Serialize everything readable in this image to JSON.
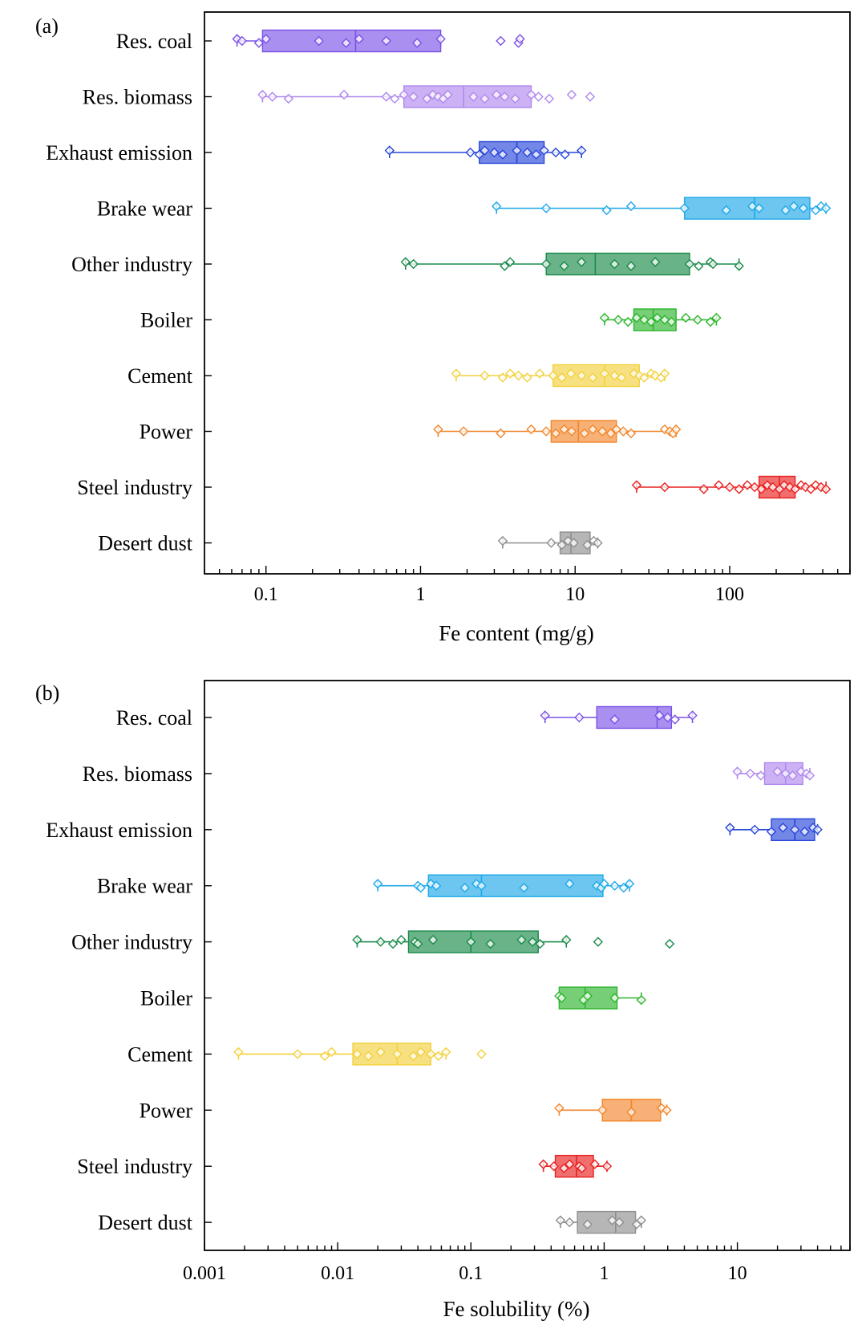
{
  "chart_data": [
    {
      "type": "box",
      "panel_label": "(a)",
      "xlabel": "Fe content (mg/g)",
      "xscale": "log",
      "xlim": [
        0.04,
        600
      ],
      "xticks": [
        0.1,
        1,
        10,
        100
      ],
      "xtick_labels": [
        "0.1",
        "1",
        "10",
        "100"
      ],
      "categories": [
        "Res. coal",
        "Res. biomass",
        "Exhaust emission",
        "Brake wear",
        "Other industry",
        "Boiler",
        "Cement",
        "Power",
        "Steel industry",
        "Desert dust"
      ],
      "series": [
        {
          "name": "Res. coal",
          "color": "#7B52E6",
          "min": 0.065,
          "q1": 0.095,
          "median": 0.38,
          "q3": 1.35,
          "max": 1.35,
          "points": [
            0.065,
            0.07,
            0.09,
            0.1,
            0.22,
            0.33,
            0.4,
            0.6,
            0.95,
            1.35,
            3.3,
            4.3,
            4.4
          ]
        },
        {
          "name": "Res. biomass",
          "color": "#B088EE",
          "min": 0.095,
          "q1": 0.78,
          "median": 1.9,
          "q3": 5.2,
          "max": 5.2,
          "points": [
            0.095,
            0.11,
            0.14,
            0.32,
            0.6,
            0.68,
            0.78,
            0.9,
            1.1,
            1.2,
            1.3,
            1.4,
            1.5,
            2.2,
            2.6,
            3.1,
            3.5,
            4.1,
            5.2,
            5.8,
            6.8,
            9.5,
            12.5
          ]
        },
        {
          "name": "Exhaust emission",
          "color": "#2846D8",
          "min": 0.63,
          "q1": 2.4,
          "median": 4.2,
          "q3": 6.3,
          "max": 11.0,
          "points": [
            0.63,
            2.1,
            2.4,
            2.6,
            3.0,
            3.4,
            4.2,
            4.9,
            5.6,
            6.3,
            7.5,
            8.6,
            11.0
          ]
        },
        {
          "name": "Brake wear",
          "color": "#1EA8E8",
          "min": 3.1,
          "q1": 51,
          "median": 145,
          "q3": 330,
          "max": 420,
          "points": [
            3.1,
            6.5,
            16,
            23,
            51,
            95,
            140,
            155,
            230,
            260,
            300,
            360,
            390,
            420
          ]
        },
        {
          "name": "Other industry",
          "color": "#1A8A4A",
          "min": 0.8,
          "q1": 6.5,
          "median": 13.5,
          "q3": 55,
          "max": 115,
          "points": [
            0.8,
            0.9,
            3.5,
            3.8,
            6.5,
            8.5,
            11,
            18,
            23,
            33,
            55,
            63,
            75,
            78,
            115
          ]
        },
        {
          "name": "Boiler",
          "color": "#2CB52C",
          "min": 15.5,
          "q1": 24,
          "median": 32,
          "q3": 45,
          "max": 82,
          "points": [
            15.5,
            19,
            22,
            25,
            28,
            31,
            34,
            38,
            42,
            52,
            62,
            75,
            82
          ]
        },
        {
          "name": "Cement",
          "color": "#F2D03C",
          "min": 1.7,
          "q1": 7.2,
          "median": 15.5,
          "q3": 26,
          "max": 38,
          "points": [
            1.7,
            2.6,
            3.4,
            3.8,
            4.3,
            4.9,
            5.9,
            7.2,
            8.2,
            9.4,
            11,
            13,
            15.5,
            18,
            20,
            24,
            26,
            28,
            31,
            33,
            36,
            38
          ]
        },
        {
          "name": "Power",
          "color": "#F2862A",
          "min": 1.3,
          "q1": 7.0,
          "median": 10.5,
          "q3": 18.5,
          "max": 45,
          "points": [
            1.3,
            1.9,
            3.3,
            5.2,
            6.5,
            7.5,
            8.5,
            9.5,
            11.5,
            13,
            15,
            17,
            18.5,
            20.5,
            23,
            38,
            41,
            43,
            45
          ]
        },
        {
          "name": "Steel industry",
          "color": "#E82020",
          "min": 25,
          "q1": 155,
          "median": 210,
          "q3": 265,
          "max": 420,
          "points": [
            25,
            38,
            68,
            85,
            100,
            115,
            130,
            145,
            160,
            175,
            190,
            210,
            225,
            245,
            265,
            290,
            310,
            335,
            360,
            390,
            420
          ]
        },
        {
          "name": "Desert dust",
          "color": "#8E8E8E",
          "min": 3.4,
          "q1": 8.0,
          "median": 9.4,
          "q3": 12.5,
          "max": 14,
          "points": [
            3.4,
            7.0,
            8.2,
            9.0,
            9.8,
            12.0,
            13.2,
            14.0
          ]
        }
      ]
    },
    {
      "type": "box",
      "panel_label": "(b)",
      "xlabel": "Fe solubility (%)",
      "xscale": "log",
      "xlim": [
        0.001,
        70
      ],
      "xticks": [
        0.001,
        0.01,
        0.1,
        1,
        10
      ],
      "xtick_labels": [
        "0.001",
        "0.01",
        "0.1",
        "1",
        "10"
      ],
      "categories": [
        "Res. coal",
        "Res. biomass",
        "Exhaust emission",
        "Brake wear",
        "Other industry",
        "Boiler",
        "Cement",
        "Power",
        "Steel industry",
        "Desert dust"
      ],
      "series": [
        {
          "name": "Res. coal",
          "color": "#7B52E6",
          "min": 0.36,
          "q1": 0.88,
          "median": 2.5,
          "q3": 3.2,
          "max": 4.6,
          "points": [
            0.36,
            0.65,
            1.2,
            2.6,
            3.0,
            3.4,
            4.6
          ]
        },
        {
          "name": "Res. biomass",
          "color": "#B088EE",
          "min": 10,
          "q1": 16,
          "median": 23,
          "q3": 31,
          "max": 35,
          "points": [
            10,
            12.5,
            15,
            20,
            23,
            26,
            30,
            33,
            35
          ]
        },
        {
          "name": "Exhaust emission",
          "color": "#2846D8",
          "min": 8.8,
          "q1": 18,
          "median": 27,
          "q3": 38,
          "max": 40,
          "points": [
            8.8,
            13.5,
            18,
            22,
            27,
            32,
            37,
            40
          ]
        },
        {
          "name": "Brake wear",
          "color": "#1EA8E8",
          "min": 0.02,
          "q1": 0.048,
          "median": 0.12,
          "q3": 0.98,
          "max": 1.55,
          "points": [
            0.02,
            0.04,
            0.042,
            0.05,
            0.055,
            0.09,
            0.11,
            0.12,
            0.25,
            0.55,
            0.88,
            0.95,
            1.0,
            1.2,
            1.4,
            1.55
          ]
        },
        {
          "name": "Other industry",
          "color": "#1A8A4A",
          "min": 0.014,
          "q1": 0.034,
          "median": 0.1,
          "q3": 0.32,
          "max": 0.52,
          "points": [
            0.014,
            0.021,
            0.026,
            0.03,
            0.038,
            0.04,
            0.052,
            0.1,
            0.14,
            0.24,
            0.29,
            0.33,
            0.52,
            0.9,
            3.1
          ]
        },
        {
          "name": "Boiler",
          "color": "#2CB52C",
          "min": 0.46,
          "q1": 0.46,
          "median": 0.72,
          "q3": 1.25,
          "max": 1.9,
          "points": [
            0.46,
            0.48,
            0.7,
            0.75,
            1.2,
            1.9
          ]
        },
        {
          "name": "Cement",
          "color": "#F2D03C",
          "min": 0.0018,
          "q1": 0.013,
          "median": 0.028,
          "q3": 0.05,
          "max": 0.065,
          "points": [
            0.0018,
            0.005,
            0.008,
            0.009,
            0.014,
            0.017,
            0.021,
            0.028,
            0.037,
            0.042,
            0.05,
            0.057,
            0.065,
            0.12
          ]
        },
        {
          "name": "Power",
          "color": "#F2862A",
          "min": 0.46,
          "q1": 0.97,
          "median": 1.6,
          "q3": 2.65,
          "max": 2.95,
          "points": [
            0.46,
            0.97,
            1.6,
            2.7,
            2.95
          ]
        },
        {
          "name": "Steel industry",
          "color": "#E82020",
          "min": 0.35,
          "q1": 0.43,
          "median": 0.62,
          "q3": 0.83,
          "max": 1.05,
          "points": [
            0.35,
            0.42,
            0.5,
            0.55,
            0.65,
            0.68,
            0.85,
            1.05
          ]
        },
        {
          "name": "Desert dust",
          "color": "#8E8E8E",
          "min": 0.47,
          "q1": 0.63,
          "median": 1.22,
          "q3": 1.72,
          "max": 1.9,
          "points": [
            0.47,
            0.55,
            0.75,
            1.15,
            1.3,
            1.75,
            1.9
          ]
        }
      ]
    }
  ]
}
